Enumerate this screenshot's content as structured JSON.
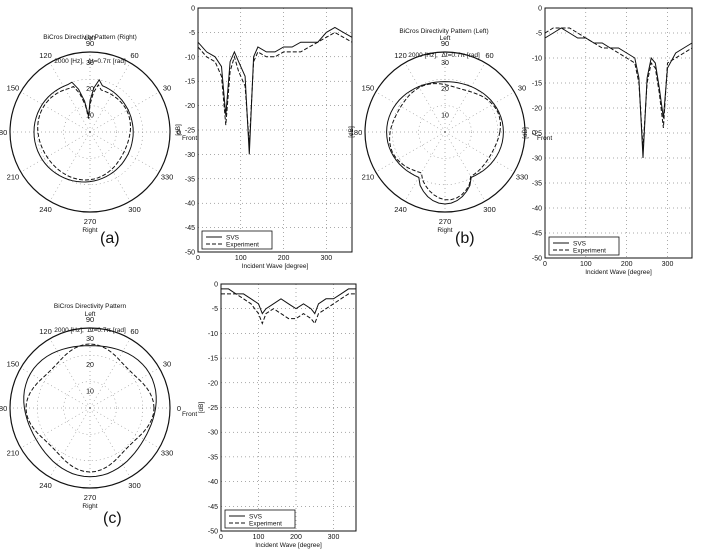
{
  "panels": [
    {
      "id": "a",
      "label": "(a)",
      "polar": {
        "title_line1": "BiCros Directivity Pattern (Right)",
        "title_line2": "2000 [Hz],  Δt=0.7π [rad]",
        "angle_labels": {
          "0": "0",
          "30": "30",
          "60": "60",
          "90": "90",
          "120": "120",
          "150": "150",
          "180": "180",
          "210": "210",
          "240": "240",
          "270": "270",
          "300": "300",
          "330": "330"
        },
        "radial_labels": [
          "10",
          "20",
          "30"
        ],
        "side_labels": {
          "left": "Left",
          "right": "Right",
          "front": "Front",
          "unit": "[dB]"
        }
      },
      "chart_data": {
        "type": "line",
        "xlabel": "Incident Wave [degree]",
        "ylabel": "[dB]",
        "xlim": [
          0,
          360
        ],
        "ylim": [
          -50,
          0
        ],
        "xticks": [
          0,
          100,
          200,
          300
        ],
        "yticks": [
          0,
          -5,
          -10,
          -15,
          -20,
          -25,
          -30,
          -35,
          -40,
          -45,
          -50
        ],
        "legend_position": "bottom",
        "series": [
          {
            "name": "SVS",
            "style": "solid",
            "x": [
              0,
              20,
              40,
              55,
              65,
              75,
              85,
              95,
              110,
              120,
              130,
              140,
              160,
              180,
              200,
              220,
              240,
              260,
              280,
              300,
              320,
              340,
              360
            ],
            "y": [
              -7,
              -9,
              -10,
              -12,
              -22,
              -11,
              -9,
              -11,
              -14,
              -30,
              -10,
              -8,
              -9,
              -9,
              -8,
              -8,
              -7,
              -7,
              -7,
              -5,
              -4,
              -5,
              -6
            ]
          },
          {
            "name": "Experiment",
            "style": "dashed",
            "x": [
              0,
              20,
              40,
              55,
              65,
              75,
              85,
              95,
              110,
              120,
              130,
              140,
              160,
              180,
              200,
              220,
              240,
              260,
              280,
              300,
              320,
              340,
              360
            ],
            "y": [
              -8,
              -10,
              -11,
              -14,
              -24,
              -13,
              -10,
              -13,
              -16,
              -28,
              -11,
              -9,
              -10,
              -10,
              -9,
              -9,
              -9,
              -8,
              -7,
              -6,
              -5,
              -6,
              -7
            ]
          }
        ]
      }
    },
    {
      "id": "b",
      "label": "(b)",
      "polar": {
        "title_line1": "BiCros Directivity Pattern (Left)",
        "title_line2": "2000 [Hz],  Δt=0.7π [rad]",
        "angle_labels": {
          "0": "0",
          "30": "30",
          "60": "60",
          "90": "90",
          "120": "120",
          "150": "150",
          "180": "180",
          "210": "210",
          "240": "240",
          "270": "270",
          "300": "300",
          "330": "330"
        },
        "radial_labels": [
          "10",
          "20",
          "30"
        ],
        "side_labels": {
          "left": "Left",
          "right": "Right",
          "front": "Front",
          "unit": "[dB]"
        }
      },
      "chart_data": {
        "type": "line",
        "xlabel": "Incident Wave [degree]",
        "ylabel": "[dB]",
        "xlim": [
          0,
          360
        ],
        "ylim": [
          -50,
          0
        ],
        "xticks": [
          0,
          100,
          200,
          300
        ],
        "yticks": [
          0,
          -5,
          -10,
          -15,
          -20,
          -25,
          -30,
          -35,
          -40,
          -45,
          -50
        ],
        "legend_position": "bottom",
        "series": [
          {
            "name": "SVS",
            "style": "solid",
            "x": [
              0,
              20,
              40,
              60,
              80,
              100,
              120,
              140,
              160,
              180,
              200,
              220,
              230,
              240,
              250,
              260,
              270,
              280,
              290,
              300,
              320,
              340,
              360
            ],
            "y": [
              -6,
              -5,
              -4,
              -5,
              -6,
              -6,
              -7,
              -7,
              -8,
              -8,
              -9,
              -10,
              -14,
              -30,
              -14,
              -10,
              -11,
              -16,
              -22,
              -12,
              -9,
              -8,
              -7
            ]
          },
          {
            "name": "Experiment",
            "style": "dashed",
            "x": [
              0,
              20,
              40,
              60,
              80,
              100,
              120,
              140,
              160,
              180,
              200,
              220,
              230,
              240,
              250,
              260,
              270,
              280,
              290,
              300,
              320,
              340,
              360
            ],
            "y": [
              -5,
              -4,
              -4,
              -4,
              -5,
              -6,
              -7,
              -8,
              -8,
              -9,
              -10,
              -11,
              -15,
              -28,
              -15,
              -11,
              -12,
              -17,
              -24,
              -11,
              -10,
              -9,
              -8
            ]
          }
        ]
      }
    },
    {
      "id": "c",
      "label": "(c)",
      "polar": {
        "title_line1": "BiCros Directivity Pattern",
        "title_line2": "2000 [Hz],  Δt=0.7π [rad]",
        "angle_labels": {
          "0": "0",
          "30": "30",
          "60": "60",
          "90": "90",
          "120": "120",
          "150": "150",
          "180": "180",
          "210": "210",
          "240": "240",
          "270": "270",
          "300": "300",
          "330": "330"
        },
        "radial_labels": [
          "10",
          "20",
          "30"
        ],
        "side_labels": {
          "left": "Left",
          "right": "Right",
          "front": "Front",
          "unit": "[dB]"
        }
      },
      "chart_data": {
        "type": "line",
        "xlabel": "Incident Wave [degree]",
        "ylabel": "[dB]",
        "xlim": [
          0,
          360
        ],
        "ylim": [
          -50,
          0
        ],
        "xticks": [
          0,
          100,
          200,
          300
        ],
        "yticks": [
          0,
          -5,
          -10,
          -15,
          -20,
          -25,
          -30,
          -35,
          -40,
          -45,
          -50
        ],
        "legend_position": "bottom",
        "series": [
          {
            "name": "SVS",
            "style": "solid",
            "x": [
              0,
              20,
              40,
              60,
              80,
              100,
              110,
              120,
              140,
              160,
              180,
              200,
              220,
              240,
              250,
              260,
              280,
              300,
              320,
              340,
              360
            ],
            "y": [
              -1,
              -1,
              -2,
              -2,
              -3,
              -4,
              -6,
              -5,
              -4,
              -3,
              -4,
              -5,
              -4,
              -5,
              -6,
              -4,
              -3,
              -3,
              -2,
              -1,
              -1
            ]
          },
          {
            "name": "Experiment",
            "style": "dashed",
            "x": [
              0,
              20,
              40,
              60,
              80,
              100,
              110,
              120,
              140,
              160,
              180,
              200,
              220,
              240,
              250,
              260,
              280,
              300,
              320,
              340,
              360
            ],
            "y": [
              -2,
              -2,
              -2,
              -3,
              -4,
              -6,
              -8,
              -6,
              -5,
              -6,
              -7,
              -7,
              -6,
              -7,
              -8,
              -6,
              -5,
              -4,
              -3,
              -2,
              -2
            ]
          }
        ]
      }
    }
  ]
}
